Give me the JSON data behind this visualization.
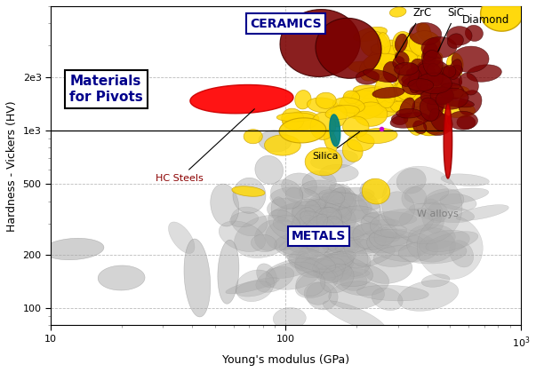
{
  "xlabel": "Young's modulus (GPa)",
  "ylabel": "Hardness - Vickers (HV)",
  "xlim": [
    10,
    1000
  ],
  "ylim": [
    80,
    5000
  ],
  "text_materials_for_pivots": "Materials\nfor Pivots",
  "text_ceramics": "CERAMICS",
  "text_metals": "METALS",
  "text_ZrC": "ZrC",
  "text_SiC": "SiC",
  "text_Diamond": "Diamond",
  "text_Silica": "Silica",
  "text_HC_Steels": "HC Steels",
  "text_W_alloys": "W alloys",
  "color_ceramics_dark": "#7a0000",
  "color_ceramics_yellow": "#FFD700",
  "color_metals_gray": "#AAAAAA",
  "color_red_ellipse": "#FF0000",
  "color_magenta": "#CC00CC",
  "color_teal": "#008080",
  "color_red_bar": "#CC0000",
  "background": "#FFFFFF",
  "gray_edge": "#888888",
  "yellow_edge": "#C8A000",
  "dark_edge": "#400000"
}
